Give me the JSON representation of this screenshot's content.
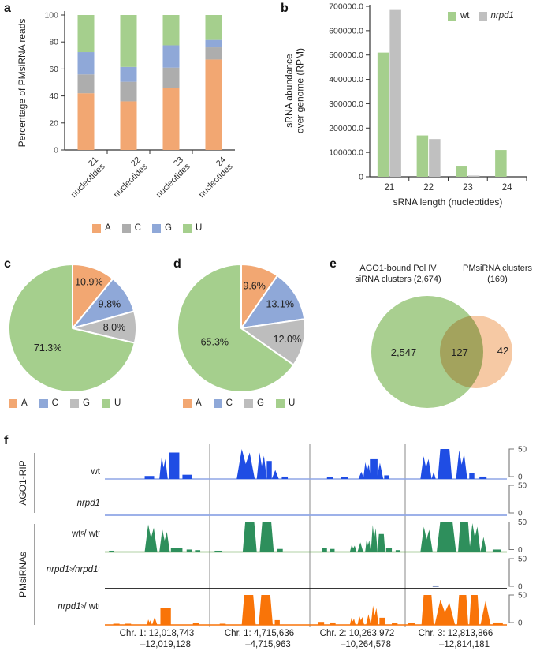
{
  "panel_letters": [
    "a",
    "b",
    "c",
    "d",
    "e",
    "f"
  ],
  "colors": {
    "pastel_orange": "#f2a772",
    "pastel_gray": "#adadad",
    "pastel_blue": "#8fa8d8",
    "pastel_green": "#a5cf8d",
    "track_blue": "#1f4de4",
    "track_blue_baseline": "#8fa6e6",
    "track_green": "#2e8f5c",
    "track_orange": "#f97408",
    "venn_green": "#a9cf90",
    "venn_peach": "#f6c9a4"
  },
  "chart_data": [
    {
      "id": "a",
      "type": "bar",
      "subtype": "stacked",
      "ylabel": "Percentage of PMsiRNA reads",
      "categories": [
        "21 nucleotides",
        "22 nucleotides",
        "23 nucleotides",
        "24 nucleotides"
      ],
      "ylim": [
        0,
        100
      ],
      "yticks": [
        0,
        20,
        40,
        60,
        80,
        100
      ],
      "series": [
        {
          "name": "A",
          "color": "#f2a772",
          "values": [
            42,
            36,
            46,
            67
          ]
        },
        {
          "name": "C",
          "color": "#adadad",
          "values": [
            14,
            14.5,
            15,
            9
          ]
        },
        {
          "name": "G",
          "color": "#8fa8d8",
          "values": [
            16.5,
            11,
            16.5,
            5.5
          ]
        },
        {
          "name": "U",
          "color": "#a5cf8d",
          "values": [
            27.5,
            38.5,
            22.5,
            18.5
          ]
        }
      ]
    },
    {
      "id": "b",
      "type": "bar",
      "subtype": "grouped",
      "ylabel_lines": [
        "sRNA abundance",
        "over genome (RPM)"
      ],
      "xlabel": "sRNA length (nucleotides)",
      "categories": [
        "21",
        "22",
        "23",
        "24"
      ],
      "ylim": [
        0,
        700000
      ],
      "ytick_values": [
        0,
        100000,
        200000,
        300000,
        400000,
        500000,
        600000,
        700000
      ],
      "ytick_labels": [
        "0",
        "100000.0",
        "200000.0",
        "300000.0",
        "400000.0",
        "500000.0",
        "600000.0",
        "700000.0"
      ],
      "series": [
        {
          "name": "wt",
          "italic": false,
          "color": "#a5cf8d",
          "values": [
            510000,
            170000,
            42000,
            110000
          ]
        },
        {
          "name": "nrpd1",
          "italic": true,
          "color": "#c0c0c0",
          "values": [
            685000,
            155000,
            5000,
            0
          ]
        }
      ]
    },
    {
      "id": "c",
      "type": "pie",
      "slices": [
        {
          "label": "A",
          "pct": 10.9,
          "text": "10.9%",
          "color": "#f2a772",
          "label_r": 62
        },
        {
          "label": "C",
          "pct": 9.8,
          "text": "9.8%",
          "color": "#8fa8d8",
          "label_r": 56
        },
        {
          "label": "G",
          "pct": 8.0,
          "text": "8.0%",
          "color": "#bdbdbd",
          "label_r": 53
        },
        {
          "label": "U",
          "pct": 71.3,
          "text": "71.3%",
          "color": "#a5cf8d",
          "label_r": 40
        }
      ]
    },
    {
      "id": "d",
      "type": "pie",
      "slices": [
        {
          "label": "A",
          "pct": 9.6,
          "text": "9.6%",
          "color": "#f2a772",
          "label_r": 56
        },
        {
          "label": "C",
          "pct": 13.1,
          "text": "13.1%",
          "color": "#8fa8d8",
          "label_r": 58
        },
        {
          "label": "G",
          "pct": 12.0,
          "text": "12.0%",
          "color": "#bdbdbd",
          "label_r": 60
        },
        {
          "label": "U",
          "pct": 65.3,
          "text": "65.3%",
          "color": "#a5cf8d",
          "label_r": 38
        }
      ]
    },
    {
      "id": "e",
      "type": "venn",
      "set1": {
        "title_lines": [
          "AGO1-bound Pol IV",
          "siRNA clusters (2,674)"
        ],
        "only": "2,547",
        "color": "#a9cf90"
      },
      "set2": {
        "title_lines": [
          "PMsiRNA clusters",
          "(169)"
        ],
        "only": "42",
        "color": "#f6c9a4"
      },
      "overlap": "127"
    },
    {
      "id": "f",
      "type": "area",
      "subtype": "genome_tracks",
      "ylim": [
        0,
        50
      ],
      "yticks": [
        "50",
        "0"
      ],
      "group_labels": [
        "AGO1-RIP",
        "PMsiRNAs"
      ],
      "regions": [
        {
          "line1": "Chr. 1: 12,018,743",
          "line2": "–12,019,128"
        },
        {
          "line1": "Chr. 1: 4,715,636",
          "line2": "–4,715,963"
        },
        {
          "line1": "Chr. 2: 10,263,972",
          "line2": "–10,264,578"
        },
        {
          "line1": "Chr. 3: 12,813,866",
          "line2": "–12,814,181"
        }
      ],
      "tracks": [
        {
          "id": "ago1-wt",
          "group": 0,
          "label_parts": [
            {
              "t": "wt",
              "i": false
            }
          ],
          "color": "#1f4de4",
          "baseline_color": "#8fa6e6",
          "profiles": [
            [
              [
                0.38,
                0.47,
                5,
                "r"
              ],
              [
                0.52,
                0.6,
                38,
                "s"
              ],
              [
                0.61,
                0.71,
                44,
                "r"
              ],
              [
                0.74,
                0.83,
                7,
                "r"
              ]
            ],
            [
              [
                0.27,
                0.45,
                50,
                "s"
              ],
              [
                0.47,
                0.57,
                44,
                "s"
              ],
              [
                0.57,
                0.62,
                30,
                "r"
              ],
              [
                0.62,
                0.69,
                15,
                "t"
              ],
              [
                0.72,
                0.78,
                4,
                "r"
              ]
            ],
            [
              [
                0.18,
                0.24,
                3,
                "r"
              ],
              [
                0.33,
                0.4,
                3,
                "r"
              ],
              [
                0.51,
                0.57,
                12,
                "t"
              ],
              [
                0.56,
                0.64,
                28,
                "s"
              ],
              [
                0.63,
                0.71,
                33,
                "r"
              ],
              [
                0.7,
                0.77,
                27,
                "t"
              ],
              [
                0.78,
                0.83,
                6,
                "r"
              ]
            ],
            [
              [
                0.15,
                0.26,
                38,
                "s"
              ],
              [
                0.26,
                0.3,
                12,
                "t"
              ],
              [
                0.32,
                0.46,
                50,
                "p"
              ],
              [
                0.5,
                0.61,
                48,
                "s"
              ],
              [
                0.63,
                0.68,
                10,
                "r"
              ],
              [
                0.73,
                0.8,
                4,
                "r"
              ]
            ]
          ]
        },
        {
          "id": "ago1-nrpd1",
          "group": 0,
          "label_parts": [
            {
              "t": "nrpd1",
              "i": true
            }
          ],
          "color": "#1f4de4",
          "baseline_color": "#8fa6e6",
          "profiles": [
            [],
            [],
            [],
            []
          ]
        },
        {
          "id": "pm-wts-wtr",
          "group": 1,
          "label_parts": [
            {
              "t": "wtˢ/ wtʳ",
              "i": false
            }
          ],
          "color": "#2e8f5c",
          "baseline_color": "#63a14f",
          "profiles": [
            [
              [
                0.04,
                0.09,
                2,
                "r"
              ],
              [
                0.38,
                0.5,
                46,
                "s"
              ],
              [
                0.52,
                0.62,
                38,
                "s"
              ],
              [
                0.63,
                0.74,
                6,
                "r"
              ],
              [
                0.78,
                0.83,
                4,
                "r"
              ],
              [
                0.86,
                0.91,
                3,
                "r"
              ]
            ],
            [
              [
                0.05,
                0.12,
                2,
                "r"
              ],
              [
                0.33,
                0.47,
                50,
                "p"
              ],
              [
                0.5,
                0.64,
                50,
                "p"
              ],
              [
                0.67,
                0.73,
                5,
                "r"
              ]
            ],
            [
              [
                0.13,
                0.18,
                6,
                "r"
              ],
              [
                0.21,
                0.26,
                5,
                "r"
              ],
              [
                0.42,
                0.49,
                12,
                "s"
              ],
              [
                0.5,
                0.56,
                16,
                "t"
              ],
              [
                0.58,
                0.64,
                22,
                "s"
              ],
              [
                0.64,
                0.71,
                45,
                "s"
              ],
              [
                0.71,
                0.79,
                30,
                "p"
              ],
              [
                0.8,
                0.86,
                7,
                "r"
              ],
              [
                0.9,
                0.95,
                3,
                "r"
              ]
            ],
            [
              [
                0.15,
                0.27,
                42,
                "s"
              ],
              [
                0.31,
                0.5,
                50,
                "p"
              ],
              [
                0.52,
                0.64,
                50,
                "p"
              ],
              [
                0.63,
                0.74,
                48,
                "s"
              ],
              [
                0.74,
                0.8,
                25,
                "t"
              ],
              [
                0.86,
                0.94,
                4,
                "r"
              ]
            ]
          ]
        },
        {
          "id": "pm-nrpd1s-nrpd1r",
          "group": 1,
          "label_parts": [
            {
              "t": "nrpd1ˢ/nrpd1ʳ",
              "i": true
            }
          ],
          "color": "#8496c2",
          "baseline_color": "#1a1a1a",
          "profiles": [
            [],
            [],
            [],
            [
              [
                0.27,
                0.33,
                4,
                "d"
              ]
            ]
          ]
        },
        {
          "id": "pm-nrpd1s-wtr",
          "group": 1,
          "label_parts": [
            {
              "t": "nrpd1ˢ",
              "i": true
            },
            {
              "t": "/ wtʳ",
              "i": false
            }
          ],
          "color": "#f97408",
          "baseline_color": "#f97408",
          "profiles": [
            [
              [
                0.08,
                0.14,
                2,
                "r"
              ],
              [
                0.19,
                0.25,
                2,
                "r"
              ],
              [
                0.4,
                0.45,
                9,
                "s"
              ],
              [
                0.45,
                0.5,
                13,
                "t"
              ],
              [
                0.53,
                0.63,
                28,
                "r"
              ],
              [
                0.84,
                0.9,
                3,
                "r"
              ]
            ],
            [
              [
                0.1,
                0.16,
                2,
                "r"
              ],
              [
                0.32,
                0.46,
                50,
                "p"
              ],
              [
                0.49,
                0.63,
                50,
                "p"
              ],
              [
                0.65,
                0.7,
                8,
                "r"
              ]
            ],
            [
              [
                0.09,
                0.15,
                5,
                "r"
              ],
              [
                0.21,
                0.27,
                4,
                "r"
              ],
              [
                0.42,
                0.48,
                12,
                "s"
              ],
              [
                0.5,
                0.57,
                15,
                "s"
              ],
              [
                0.59,
                0.64,
                18,
                "t"
              ],
              [
                0.64,
                0.72,
                32,
                "s"
              ],
              [
                0.73,
                0.79,
                12,
                "r"
              ],
              [
                0.86,
                0.92,
                3,
                "r"
              ]
            ],
            [
              [
                0.03,
                0.1,
                3,
                "r"
              ],
              [
                0.16,
                0.28,
                50,
                "p"
              ],
              [
                0.29,
                0.49,
                42,
                "s"
              ],
              [
                0.51,
                0.62,
                50,
                "p"
              ],
              [
                0.63,
                0.73,
                50,
                "p"
              ],
              [
                0.74,
                0.84,
                40,
                "t"
              ],
              [
                0.86,
                0.96,
                4,
                "r"
              ]
            ]
          ]
        }
      ]
    }
  ]
}
